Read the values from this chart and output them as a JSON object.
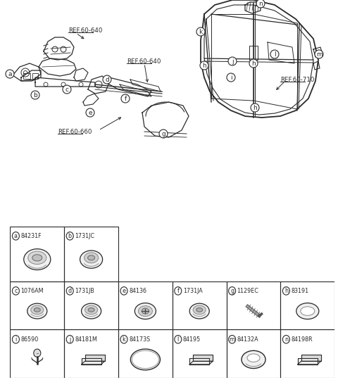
{
  "bg_color": "#ffffff",
  "lc": "#2a2a2a",
  "table_parts_row0": [
    {
      "letter": "a",
      "code": "84231F",
      "col": 0
    },
    {
      "letter": "b",
      "code": "1731JC",
      "col": 1
    }
  ],
  "table_parts_row1": [
    {
      "letter": "c",
      "code": "1076AM",
      "col": 0
    },
    {
      "letter": "d",
      "code": "1731JB",
      "col": 1
    },
    {
      "letter": "e",
      "code": "84136",
      "col": 2
    },
    {
      "letter": "f",
      "code": "1731JA",
      "col": 3
    },
    {
      "letter": "g",
      "code": "1129EC",
      "col": 4
    },
    {
      "letter": "h",
      "code": "83191",
      "col": 5
    }
  ],
  "table_parts_row2": [
    {
      "letter": "i",
      "code": "86590",
      "col": 0
    },
    {
      "letter": "j",
      "code": "84181M",
      "col": 1
    },
    {
      "letter": "k",
      "code": "84173S",
      "col": 2
    },
    {
      "letter": "l",
      "code": "84195",
      "col": 3
    },
    {
      "letter": "m",
      "code": "84132A",
      "col": 4
    },
    {
      "letter": "n",
      "code": "84198R",
      "col": 5
    }
  ]
}
